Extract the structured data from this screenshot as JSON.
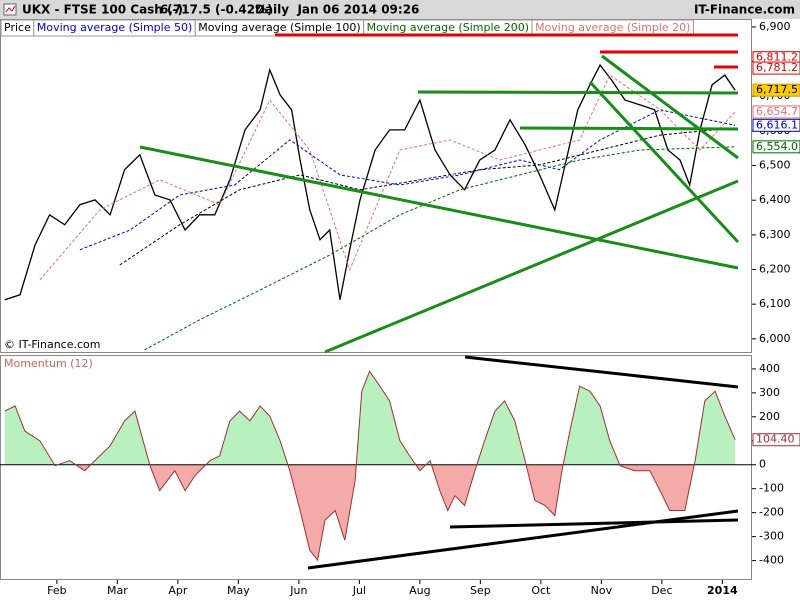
{
  "chart_data": [
    {
      "type": "line",
      "title": "UKX - FTSE 100 Cash (-)",
      "subtitle": "6,717.5 (-0.42%)",
      "date_label": "Daily  Jan 06 2014 09:26",
      "source": "IT-Finance.com",
      "credit": "© IT-Finance.com",
      "xlim": [
        0.06,
        12.49
      ],
      "ylim": [
        5962,
        6920
      ],
      "yticks": [
        {
          "value": 6000,
          "label": "6,000"
        },
        {
          "value": 6100,
          "label": "6,100"
        },
        {
          "value": 6200,
          "label": "6,200"
        },
        {
          "value": 6300,
          "label": "6,300"
        },
        {
          "value": 6400,
          "label": "6,400"
        },
        {
          "value": 6500,
          "label": "6,500"
        },
        {
          "value": 6600,
          "label": "6,600"
        },
        {
          "value": 6700,
          "label": "6,700"
        },
        {
          "value": 6800,
          "label": "6,800"
        },
        {
          "value": 6900,
          "label": "6,900"
        }
      ],
      "series": [
        {
          "name": "Price",
          "color": "#000000",
          "dashed": false,
          "x": [
            0.14,
            0.39,
            0.64,
            0.88,
            1.13,
            1.38,
            1.63,
            1.88,
            2.12,
            2.37,
            2.62,
            2.87,
            3.12,
            3.36,
            3.61,
            3.86,
            4.11,
            4.36,
            4.52,
            4.69,
            4.88,
            5.02,
            5.18,
            5.35,
            5.51,
            5.68,
            5.84,
            6.01,
            6.26,
            6.5,
            6.75,
            7.0,
            7.25,
            7.5,
            7.74,
            7.99,
            8.24,
            8.49,
            8.74,
            8.98,
            9.23,
            9.4,
            9.61,
            9.81,
            9.98,
            10.17,
            10.39,
            10.64,
            10.88,
            11.1,
            11.3,
            11.46,
            11.63,
            11.83,
            12.04,
            12.21
          ],
          "values": [
            6113,
            6127,
            6271,
            6358,
            6329,
            6387,
            6401,
            6358,
            6488,
            6531,
            6415,
            6401,
            6314,
            6358,
            6358,
            6459,
            6603,
            6661,
            6776,
            6704,
            6661,
            6516,
            6372,
            6286,
            6314,
            6113,
            6257,
            6401,
            6545,
            6603,
            6603,
            6689,
            6545,
            6473,
            6430,
            6516,
            6545,
            6632,
            6560,
            6473,
            6372,
            6502,
            6661,
            6733,
            6790,
            6747,
            6689,
            6675,
            6661,
            6545,
            6516,
            6444,
            6603,
            6733,
            6761,
            6717.5
          ]
        },
        {
          "name": "Moving average (Simple 50)",
          "color": "#0000cc",
          "dashed": true,
          "x": [
            1.38,
            2.21,
            3.03,
            3.94,
            4.85,
            5.68,
            6.67,
            7.66,
            8.65,
            9.31,
            9.98,
            10.97,
            12.21
          ],
          "values": [
            6257,
            6314,
            6415,
            6444,
            6574,
            6473,
            6444,
            6473,
            6516,
            6488,
            6574,
            6661,
            6616.1
          ]
        },
        {
          "name": "Moving average (Simple 100)",
          "color": "#000000",
          "dashed": true,
          "x": [
            2.04,
            3.03,
            4.02,
            5.02,
            6.01,
            7.0,
            7.99,
            8.98,
            9.98,
            10.97,
            12.21
          ],
          "values": [
            6213,
            6329,
            6430,
            6473,
            6430,
            6459,
            6488,
            6502,
            6545,
            6588,
            6609
          ]
        },
        {
          "name": "Moving average (Simple 200)",
          "color": "#006600",
          "dashed": true,
          "x": [
            2.45,
            3.36,
            4.36,
            5.51,
            6.67,
            7.66,
            8.65,
            9.64,
            10.64,
            12.21
          ],
          "values": [
            5968,
            6055,
            6141,
            6242,
            6358,
            6430,
            6473,
            6516,
            6545,
            6554
          ]
        },
        {
          "name": "Moving average (Simple 20)",
          "color": "#e07070",
          "dashed": true,
          "x": [
            0.72,
            1.71,
            2.7,
            3.69,
            4.52,
            5.18,
            5.84,
            6.67,
            7.5,
            8.32,
            8.98,
            9.64,
            10.14,
            10.97,
            11.63,
            12.21
          ],
          "values": [
            6170,
            6372,
            6459,
            6387,
            6689,
            6545,
            6199,
            6545,
            6574,
            6516,
            6545,
            6574,
            6761,
            6661,
            6545,
            6654.7
          ]
        }
      ],
      "value_tags": [
        {
          "value": 6811.2,
          "label": "6,811.2",
          "color": "#e00000"
        },
        {
          "value": 6781.2,
          "label": "6,781.2",
          "color": "#e00000"
        },
        {
          "value": 6717.5,
          "label": "6,717.5",
          "color": "#000000",
          "background": "#ffcc00"
        },
        {
          "value": 6654.7,
          "label": "6,654.7",
          "color": "#e07070"
        },
        {
          "value": 6616.1,
          "label": "6,616.1",
          "color": "#0000cc"
        },
        {
          "value": 6554.0,
          "label": "6,554.0",
          "color": "#006600"
        }
      ]
    },
    {
      "type": "area",
      "title": "Momentum (12)",
      "xlim": [
        0.06,
        12.49
      ],
      "xticks": [
        {
          "value": 1,
          "label": "Feb"
        },
        {
          "value": 2,
          "label": "Mar"
        },
        {
          "value": 3,
          "label": "Apr"
        },
        {
          "value": 4,
          "label": "May"
        },
        {
          "value": 5,
          "label": "Jun"
        },
        {
          "value": 6,
          "label": "Jul"
        },
        {
          "value": 7,
          "label": "Aug"
        },
        {
          "value": 8,
          "label": "Sep"
        },
        {
          "value": 9,
          "label": "Oct"
        },
        {
          "value": 10,
          "label": "Nov"
        },
        {
          "value": 11,
          "label": "Dec"
        },
        {
          "value": 12,
          "label": "2014"
        }
      ],
      "ylim": [
        -481,
        458
      ],
      "yticks": [
        400,
        300,
        200,
        100,
        0,
        -100,
        -200,
        -300,
        -400
      ],
      "color": "#993333",
      "fill_positive": "#b8f0c0",
      "fill_negative": "#f5aaaa",
      "x": [
        0.14,
        0.31,
        0.47,
        0.72,
        0.97,
        1.21,
        1.46,
        1.71,
        1.88,
        2.12,
        2.29,
        2.54,
        2.7,
        2.95,
        3.12,
        3.28,
        3.53,
        3.69,
        3.86,
        4.02,
        4.19,
        4.36,
        4.52,
        4.69,
        4.85,
        5.02,
        5.18,
        5.31,
        5.43,
        5.6,
        5.76,
        5.93,
        6.04,
        6.17,
        6.34,
        6.5,
        6.67,
        6.83,
        7.0,
        7.17,
        7.33,
        7.46,
        7.58,
        7.74,
        7.91,
        8.07,
        8.24,
        8.4,
        8.57,
        8.74,
        8.9,
        9.07,
        9.23,
        9.35,
        9.48,
        9.64,
        9.81,
        9.98,
        10.14,
        10.31,
        10.55,
        10.8,
        10.97,
        11.13,
        11.38,
        11.55,
        11.71,
        11.88,
        12.04,
        12.21
      ],
      "values": [
        224,
        245,
        141,
        100,
        -4,
        17,
        -25,
        37,
        79,
        183,
        224,
        -4,
        -108,
        -25,
        -108,
        -46,
        17,
        37,
        183,
        224,
        183,
        245,
        203,
        100,
        -25,
        -191,
        -357,
        -398,
        -232,
        -191,
        -315,
        -66,
        307,
        390,
        328,
        266,
        100,
        37,
        -25,
        17,
        -108,
        -191,
        -129,
        -170,
        -25,
        100,
        224,
        266,
        183,
        17,
        -149,
        -170,
        -212,
        -25,
        141,
        328,
        307,
        245,
        100,
        -4,
        -25,
        -25,
        -108,
        -191,
        -191,
        17,
        266,
        307,
        203,
        104.4
      ],
      "value_tags": [
        {
          "value": 104.4,
          "label": "104.40",
          "color": "#993333"
        }
      ]
    }
  ]
}
